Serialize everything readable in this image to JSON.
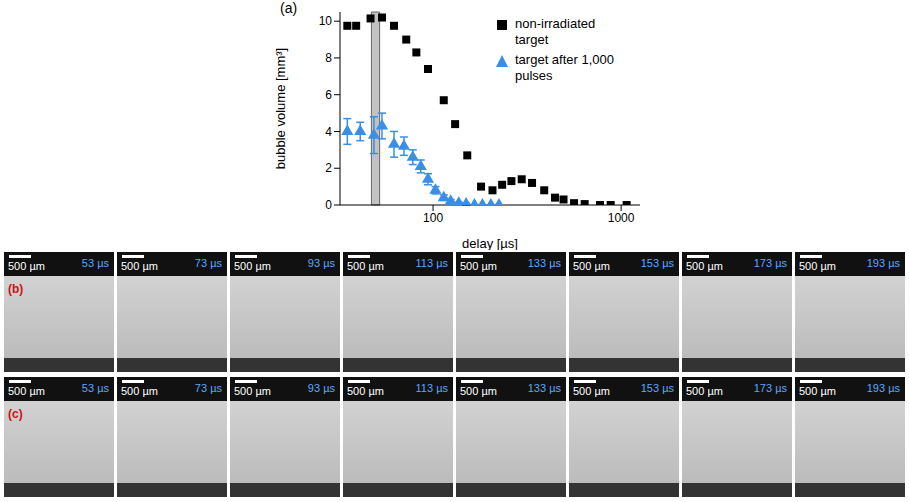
{
  "chart_data": {
    "type": "scatter",
    "title": "(a)",
    "x_label": "delay [µs]",
    "y_label": "bubble volume [mm³]",
    "log": "x",
    "xlim": [
      32,
      1260
    ],
    "xticks": [
      100,
      1000
    ],
    "ylim": [
      0,
      10.5
    ],
    "yticks": [
      0,
      2,
      4,
      6,
      8,
      10
    ],
    "legend": "upper right",
    "shaded_x_range": [
      47,
      52
    ],
    "series": [
      {
        "name": "non-irradiated target",
        "color": "#000000",
        "marker": "square",
        "x": [
          35,
          39,
          46.5,
          53.5,
          62,
          72,
          81.5,
          94,
          114,
          131,
          152,
          180,
          207,
          233,
          261,
          296,
          336,
          390,
          445,
          494,
          562,
          640,
          772,
          880,
          1070
        ],
        "values": [
          9.75,
          9.75,
          10.15,
          10.2,
          9.75,
          9.0,
          8.3,
          7.4,
          5.7,
          4.4,
          2.7,
          1.0,
          0.8,
          1.1,
          1.3,
          1.4,
          1.2,
          0.8,
          0.4,
          0.3,
          0.1,
          0.05,
          0,
          0,
          0
        ]
      },
      {
        "name": "target after 1,000 pulses",
        "color": "#3a8ee6",
        "marker": "triangle",
        "x": [
          35,
          41,
          48.5,
          53.5,
          62,
          70,
          78,
          86,
          94,
          103,
          114,
          124,
          137,
          150,
          166,
          183,
          203,
          224
        ],
        "values": [
          4.0,
          4.0,
          3.8,
          4.3,
          3.3,
          3.2,
          2.6,
          2.1,
          1.4,
          0.8,
          0.4,
          0.2,
          0.1,
          0.05,
          0,
          0,
          0,
          0
        ],
        "errors": [
          0.7,
          0.5,
          1.0,
          0.7,
          0.7,
          0.5,
          0.4,
          0.35,
          0.3,
          0.2,
          0.15,
          0.1,
          0.05,
          0.05,
          0,
          0,
          0,
          0
        ]
      }
    ]
  },
  "image_rows": [
    {
      "label": "(b)",
      "scale_bar": "500 µm",
      "times": [
        "53 µs",
        "73 µs",
        "93 µs",
        "113 µs",
        "133 µs",
        "153 µs",
        "173 µs",
        "193 µs"
      ]
    },
    {
      "label": "(c)",
      "scale_bar": "500 µm",
      "times": [
        "53 µs",
        "73 µs",
        "93 µs",
        "113 µs",
        "133 µs",
        "153 µs",
        "173 µs",
        "193 µs"
      ]
    }
  ]
}
